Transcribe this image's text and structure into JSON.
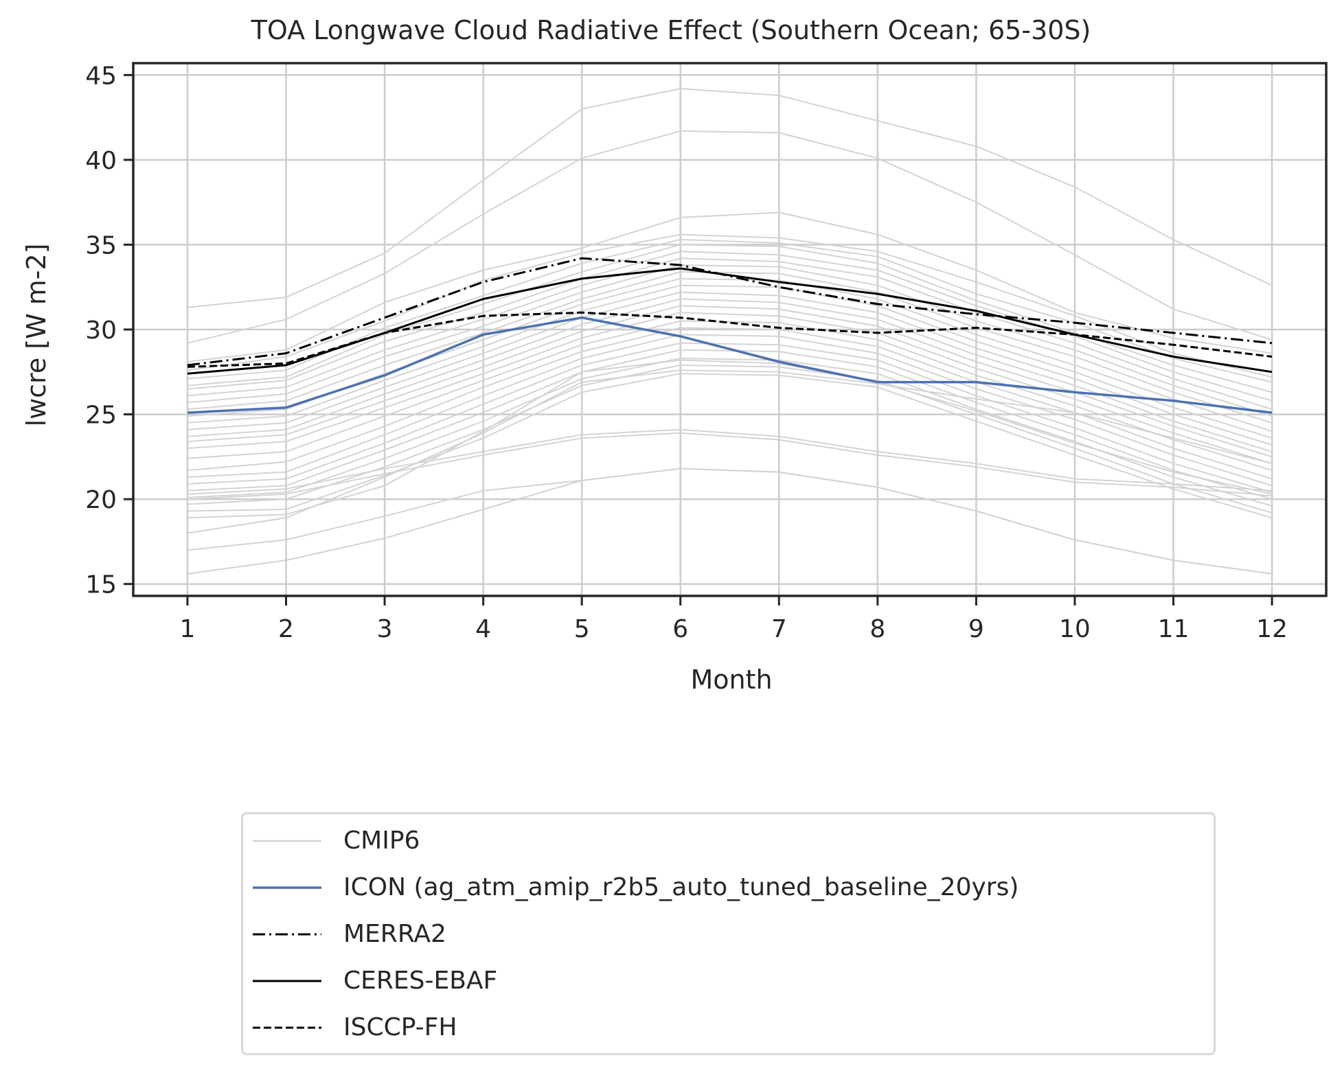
{
  "chart_data": {
    "type": "line",
    "title": "TOA Longwave Cloud Radiative Effect (Southern Ocean; 65-30S)",
    "xlabel": "Month",
    "ylabel": "lwcre [W m-2]",
    "x": [
      1,
      2,
      3,
      4,
      5,
      6,
      7,
      8,
      9,
      10,
      11,
      12
    ],
    "xticks": [
      "1",
      "2",
      "3",
      "4",
      "5",
      "6",
      "7",
      "8",
      "9",
      "10",
      "11",
      "12"
    ],
    "yticks": [
      15,
      20,
      25,
      30,
      35,
      40,
      45
    ],
    "ylim": [
      14.3,
      45.7
    ],
    "xlim": [
      0.45,
      12.55
    ],
    "grid": true,
    "legend_position": "below",
    "colors": {
      "cmip6": "#d3d3d3",
      "icon": "#4c72b0",
      "obs": "#000000"
    },
    "series": [
      {
        "name": "ICON (ag_atm_amip_r2b5_auto_tuned_baseline_20yrs)",
        "style": "solid",
        "color": "#4c72b0",
        "values": [
          25.1,
          25.4,
          27.3,
          29.7,
          30.7,
          29.6,
          28.1,
          26.9,
          26.9,
          26.3,
          25.8,
          25.1
        ]
      },
      {
        "name": "MERRA2",
        "style": "dashdot",
        "color": "#000000",
        "values": [
          27.9,
          28.6,
          30.7,
          32.8,
          34.2,
          33.8,
          32.5,
          31.5,
          30.9,
          30.4,
          29.8,
          29.2
        ]
      },
      {
        "name": "CERES-EBAF",
        "style": "solid",
        "color": "#000000",
        "values": [
          27.4,
          27.9,
          29.8,
          31.8,
          33.0,
          33.6,
          32.8,
          32.1,
          31.1,
          29.7,
          28.4,
          27.5
        ]
      },
      {
        "name": "ISCCP-FH",
        "style": "dashed",
        "color": "#000000",
        "values": [
          27.8,
          28.0,
          29.8,
          30.8,
          31.0,
          30.7,
          30.1,
          29.8,
          30.1,
          29.7,
          29.1,
          28.4
        ]
      }
    ],
    "ensemble": {
      "name": "CMIP6",
      "color": "#d3d3d3",
      "members": [
        [
          31.3,
          31.9,
          34.5,
          38.8,
          43.0,
          44.2,
          43.8,
          42.3,
          40.8,
          38.4,
          35.3,
          32.6
        ],
        [
          29.2,
          30.6,
          33.3,
          36.8,
          40.1,
          41.7,
          41.6,
          40.1,
          37.5,
          34.4,
          31.2,
          29.4
        ],
        [
          28.1,
          28.8,
          31.6,
          33.5,
          34.8,
          36.6,
          36.9,
          35.6,
          33.5,
          31.0,
          29.5,
          28.6
        ],
        [
          27.6,
          28.4,
          30.5,
          32.9,
          34.5,
          35.6,
          35.4,
          34.6,
          32.8,
          30.8,
          28.6,
          27.2
        ],
        [
          27.1,
          27.6,
          30.1,
          32.0,
          33.9,
          35.3,
          35.1,
          34.3,
          32.1,
          30.4,
          28.3,
          26.9
        ],
        [
          26.7,
          27.2,
          29.7,
          31.5,
          33.4,
          35.0,
          34.9,
          33.9,
          31.7,
          29.8,
          27.9,
          26.3
        ],
        [
          26.5,
          27.0,
          29.3,
          31.0,
          33.0,
          34.6,
          34.4,
          33.5,
          31.4,
          29.6,
          27.5,
          25.8
        ],
        [
          26.1,
          26.6,
          28.8,
          30.6,
          32.6,
          34.2,
          34.0,
          33.1,
          31.0,
          29.2,
          27.1,
          25.3
        ],
        [
          25.7,
          26.2,
          28.4,
          30.2,
          32.2,
          33.8,
          33.7,
          32.6,
          30.5,
          28.8,
          26.7,
          24.9
        ],
        [
          25.3,
          25.8,
          27.9,
          29.8,
          31.8,
          33.4,
          33.3,
          32.2,
          30.1,
          28.4,
          26.3,
          24.5
        ],
        [
          24.9,
          25.3,
          27.4,
          29.4,
          31.5,
          33.0,
          32.9,
          31.8,
          29.7,
          27.9,
          25.9,
          24.0
        ],
        [
          24.5,
          24.9,
          27.0,
          29.0,
          31.1,
          32.6,
          32.5,
          31.4,
          29.3,
          27.5,
          25.4,
          23.6
        ],
        [
          24.1,
          24.5,
          26.6,
          28.6,
          30.7,
          32.2,
          32.0,
          31.0,
          28.9,
          27.1,
          25.0,
          23.2
        ],
        [
          23.7,
          24.1,
          26.2,
          28.2,
          30.3,
          31.8,
          31.6,
          30.6,
          28.5,
          26.7,
          24.6,
          22.8
        ],
        [
          23.4,
          23.8,
          25.8,
          27.8,
          29.9,
          31.4,
          31.2,
          30.2,
          28.1,
          26.3,
          24.3,
          22.5
        ],
        [
          23.0,
          23.4,
          25.4,
          27.4,
          29.5,
          31.0,
          30.8,
          29.8,
          27.7,
          25.9,
          23.9,
          22.1
        ],
        [
          22.4,
          22.8,
          24.9,
          27.0,
          29.1,
          30.5,
          30.4,
          29.4,
          27.3,
          25.5,
          23.5,
          21.7
        ],
        [
          21.7,
          22.2,
          24.3,
          26.6,
          28.7,
          30.1,
          30.0,
          29.0,
          26.9,
          25.1,
          23.0,
          21.2
        ],
        [
          21.3,
          21.6,
          23.8,
          26.1,
          28.3,
          29.7,
          29.6,
          28.6,
          26.5,
          24.7,
          22.6,
          20.8
        ],
        [
          20.9,
          21.2,
          23.3,
          25.6,
          27.9,
          29.2,
          29.1,
          28.2,
          26.1,
          24.2,
          22.1,
          20.4
        ],
        [
          20.5,
          20.8,
          22.9,
          25.1,
          27.5,
          28.8,
          28.7,
          27.8,
          25.7,
          23.8,
          21.7,
          20.0
        ],
        [
          20.1,
          20.4,
          22.4,
          24.6,
          27.1,
          28.3,
          28.2,
          27.4,
          25.3,
          23.4,
          21.3,
          19.6
        ],
        [
          19.7,
          20.0,
          21.9,
          24.1,
          26.7,
          27.9,
          27.8,
          27.0,
          25.0,
          23.0,
          20.9,
          19.2
        ],
        [
          19.3,
          19.4,
          21.4,
          23.6,
          26.3,
          27.4,
          27.3,
          26.6,
          24.6,
          22.6,
          20.6,
          18.9
        ],
        [
          18.9,
          19.1,
          20.8,
          24.0,
          27.5,
          28.2,
          28.0,
          26.9,
          25.2,
          23.3,
          21.6,
          20.3
        ],
        [
          20.3,
          20.6,
          21.8,
          22.8,
          23.8,
          24.1,
          23.7,
          22.8,
          22.1,
          21.2,
          20.9,
          20.5
        ],
        [
          20.0,
          20.3,
          21.5,
          22.6,
          23.6,
          23.9,
          23.5,
          22.6,
          21.9,
          21.0,
          20.7,
          20.2
        ],
        [
          18.0,
          18.9,
          21.3,
          23.9,
          26.9,
          27.6,
          27.5,
          26.8,
          25.9,
          25.1,
          23.6,
          22.1
        ],
        [
          17.0,
          17.6,
          19.0,
          20.5,
          21.1,
          21.8,
          21.6,
          20.7,
          19.3,
          17.6,
          16.4,
          15.6
        ],
        [
          15.6,
          16.4,
          17.7,
          19.4,
          21.1,
          21.8,
          21.6,
          20.7,
          19.3,
          17.6,
          16.4,
          15.6
        ]
      ]
    }
  },
  "legend": {
    "items": [
      {
        "label": "CMIP6",
        "style": "solid",
        "color": "#d3d3d3"
      },
      {
        "label": "ICON (ag_atm_amip_r2b5_auto_tuned_baseline_20yrs)",
        "style": "solid",
        "color": "#4c72b0"
      },
      {
        "label": "MERRA2",
        "style": "dashdot",
        "color": "#000000"
      },
      {
        "label": "CERES-EBAF",
        "style": "solid",
        "color": "#000000"
      },
      {
        "label": "ISCCP-FH",
        "style": "dashed",
        "color": "#000000"
      }
    ]
  }
}
